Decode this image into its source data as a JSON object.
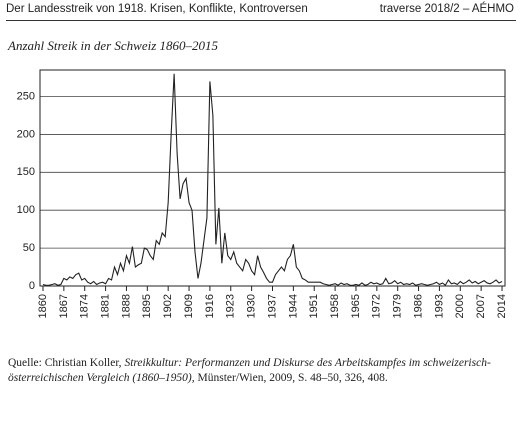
{
  "header": {
    "left": "Der Landesstreik von 1918. Krisen, Konflikte, Kontroversen",
    "right": "traverse 2018/2 – AÉHMO"
  },
  "chart_data": {
    "type": "line",
    "title": "Anzahl Streik in der Schweiz 1860–2015",
    "color": "#222222",
    "grid": true,
    "x": [
      1860,
      1861,
      1862,
      1863,
      1864,
      1865,
      1866,
      1867,
      1868,
      1869,
      1870,
      1871,
      1872,
      1873,
      1874,
      1875,
      1876,
      1877,
      1878,
      1879,
      1880,
      1881,
      1882,
      1883,
      1884,
      1885,
      1886,
      1887,
      1888,
      1889,
      1890,
      1891,
      1892,
      1893,
      1894,
      1895,
      1896,
      1897,
      1898,
      1899,
      1900,
      1901,
      1902,
      1903,
      1904,
      1905,
      1906,
      1907,
      1908,
      1909,
      1910,
      1911,
      1912,
      1913,
      1914,
      1915,
      1916,
      1917,
      1918,
      1919,
      1920,
      1921,
      1922,
      1923,
      1924,
      1925,
      1926,
      1927,
      1928,
      1929,
      1930,
      1931,
      1932,
      1933,
      1934,
      1935,
      1936,
      1937,
      1938,
      1939,
      1940,
      1941,
      1942,
      1943,
      1944,
      1945,
      1946,
      1947,
      1948,
      1949,
      1950,
      1951,
      1952,
      1953,
      1954,
      1955,
      1956,
      1957,
      1958,
      1959,
      1960,
      1961,
      1962,
      1963,
      1964,
      1965,
      1966,
      1967,
      1968,
      1969,
      1970,
      1971,
      1972,
      1973,
      1974,
      1975,
      1976,
      1977,
      1978,
      1979,
      1980,
      1981,
      1982,
      1983,
      1984,
      1985,
      1986,
      1987,
      1988,
      1989,
      1990,
      1991,
      1992,
      1993,
      1994,
      1995,
      1996,
      1997,
      1998,
      1999,
      2000,
      2001,
      2002,
      2003,
      2004,
      2005,
      2006,
      2007,
      2008,
      2009,
      2010,
      2011,
      2012,
      2013,
      2014
    ],
    "values": [
      2,
      1,
      1,
      2,
      3,
      1,
      2,
      10,
      8,
      12,
      10,
      15,
      17,
      8,
      10,
      5,
      3,
      6,
      2,
      4,
      5,
      3,
      10,
      8,
      25,
      15,
      30,
      20,
      40,
      30,
      52,
      25,
      28,
      30,
      50,
      48,
      40,
      35,
      60,
      55,
      70,
      65,
      110,
      200,
      280,
      175,
      115,
      135,
      142,
      110,
      100,
      45,
      10,
      30,
      60,
      90,
      270,
      225,
      55,
      103,
      30,
      70,
      40,
      35,
      45,
      30,
      25,
      20,
      35,
      30,
      20,
      15,
      40,
      25,
      18,
      10,
      5,
      5,
      15,
      20,
      25,
      20,
      35,
      40,
      55,
      25,
      20,
      10,
      8,
      5,
      5,
      5,
      5,
      5,
      3,
      2,
      1,
      2,
      3,
      1,
      4,
      2,
      3,
      1,
      1,
      2,
      1,
      4,
      1,
      2,
      5,
      3,
      4,
      2,
      3,
      10,
      3,
      4,
      7,
      3,
      5,
      2,
      3,
      2,
      4,
      1,
      2,
      3,
      2,
      1,
      2,
      3,
      5,
      2,
      4,
      1,
      8,
      3,
      4,
      2,
      6,
      3,
      5,
      8,
      4,
      6,
      3,
      5,
      7,
      4,
      3,
      5,
      8,
      4,
      6
    ],
    "xlim": [
      1859,
      2015
    ],
    "ylim": [
      0,
      285
    ],
    "xticks": [
      1860,
      1867,
      1874,
      1881,
      1888,
      1895,
      1902,
      1909,
      1916,
      1923,
      1930,
      1937,
      1944,
      1951,
      1958,
      1965,
      1972,
      1979,
      1986,
      1993,
      2000,
      2007,
      2014
    ],
    "yticks": [
      0,
      50,
      100,
      150,
      200,
      250
    ]
  },
  "caption": {
    "prefix": "Quelle: Christian Koller, ",
    "work": "Streikkultur: Performanzen und Diskurse des Arbeitskampfes im schweizerisch-österreichischen Vergleich (1860–1950),",
    "suffix": " Münster/Wien, 2009, S. 48–50, 326, 408."
  }
}
